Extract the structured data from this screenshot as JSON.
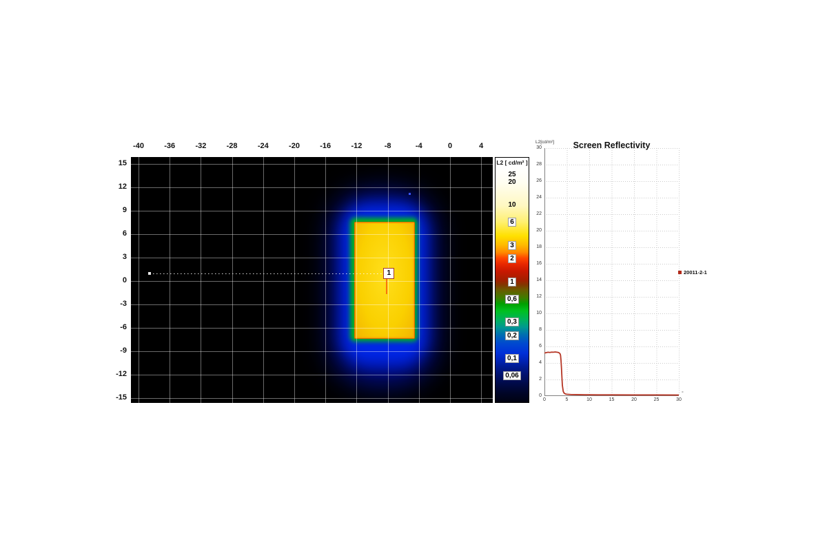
{
  "colors": {
    "curve_red": "#b53524",
    "legend_marker": "#b22a1a",
    "screen_yellow": "#fad000",
    "fringe_green": "#00b41e",
    "halo_blue": "#0026e6",
    "halo_dark_blue": "#000d8a",
    "marker_border": "#a03a2a",
    "grid_on_black": "rgba(255,255,255,0.42)"
  },
  "luminance_map": {
    "colorbar_title": "L2 [ cd/m² ]",
    "marker_label": "1"
  },
  "chart_data": [
    {
      "type": "heatmap",
      "panel": "luminance-false-color-map",
      "colorbar_title": "L2 [ cd/m² ]",
      "colorbar_scale": "log",
      "x_ticks": [
        -40,
        -36,
        -32,
        -28,
        -24,
        -20,
        -16,
        -12,
        -8,
        -4,
        0,
        4
      ],
      "y_ticks": [
        15,
        12,
        9,
        6,
        3,
        0,
        -3,
        -6,
        -9,
        -12,
        -15
      ],
      "x_range": [
        -41,
        5.5
      ],
      "y_range": [
        -15.6,
        15.9
      ],
      "grid": "on",
      "colorbar_labels": [
        {
          "text": "25",
          "value": 25,
          "boxed": false
        },
        {
          "text": "20",
          "value": 20,
          "boxed": false
        },
        {
          "text": "10",
          "value": 10,
          "boxed": false
        },
        {
          "text": "6",
          "value": 6,
          "boxed": true
        },
        {
          "text": "3",
          "value": 3,
          "boxed": true
        },
        {
          "text": "2",
          "value": 2,
          "boxed": true
        },
        {
          "text": "1",
          "value": 1,
          "boxed": true
        },
        {
          "text": "0,6",
          "value": 0.6,
          "boxed": true
        },
        {
          "text": "0,3",
          "value": 0.3,
          "boxed": true
        },
        {
          "text": "0,2",
          "value": 0.2,
          "boxed": true
        },
        {
          "text": "0,1",
          "value": 0.1,
          "boxed": true
        },
        {
          "text": "0,06",
          "value": 0.06,
          "boxed": true
        }
      ],
      "screen_region": {
        "x_min": -12.3,
        "x_max": -4.7,
        "y_min": -7.2,
        "y_max": 7.6
      },
      "marker": {
        "id": "1",
        "x": -9.0,
        "y": 1.0,
        "line_from_x": -38.6
      },
      "background_level": "black (< 0,06 cd/m²)",
      "screen_level": "yellow (≈ 6-10 cd/m²)"
    },
    {
      "type": "line",
      "panel": "screen-reflectivity",
      "title": "Screen Reflectivity",
      "ylabel": "L2[cd/m²]",
      "x_unit": "°",
      "xlim": [
        0,
        30
      ],
      "ylim": [
        0,
        30
      ],
      "x_ticks": [
        0,
        5,
        10,
        15,
        20,
        25,
        30
      ],
      "y_ticks": [
        0,
        2,
        4,
        6,
        8,
        10,
        12,
        14,
        16,
        18,
        20,
        22,
        24,
        26,
        28,
        30
      ],
      "grid": "dotted",
      "legend_position": "right",
      "series": [
        {
          "name": "20011-2-1",
          "color": "#b53524",
          "x": [
            0,
            0.4,
            0.8,
            1.2,
            1.6,
            2.0,
            2.4,
            2.8,
            3.1,
            3.3,
            3.5,
            3.6,
            3.7,
            3.8,
            3.9,
            4.0,
            4.2,
            4.4,
            4.7,
            5.0,
            5.5,
            6,
            7,
            8,
            9,
            10,
            12,
            15,
            20,
            25,
            30
          ],
          "y": [
            5.2,
            5.25,
            5.3,
            5.27,
            5.31,
            5.3,
            5.33,
            5.3,
            5.27,
            5.22,
            5.1,
            4.9,
            4.3,
            3.4,
            2.3,
            1.3,
            0.55,
            0.35,
            0.25,
            0.22,
            0.2,
            0.18,
            0.17,
            0.16,
            0.15,
            0.15,
            0.14,
            0.14,
            0.13,
            0.13,
            0.12
          ]
        }
      ]
    }
  ]
}
